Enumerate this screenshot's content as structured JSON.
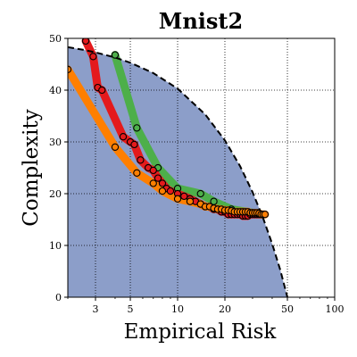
{
  "chart_data": {
    "type": "scatter",
    "title": "Mnist2",
    "xlabel": "Empirical Risk",
    "ylabel": "Complexity",
    "x_scale": "log",
    "xlim": [
      2,
      100
    ],
    "ylim": [
      0,
      50
    ],
    "x_ticks": [
      3,
      5,
      10,
      20,
      50,
      100
    ],
    "x_tick_labels": [
      "3",
      "5",
      "10",
      "20",
      "50",
      "100"
    ],
    "y_ticks": [
      0,
      10,
      20,
      30,
      40,
      50
    ],
    "y_tick_labels": [
      "0",
      "10",
      "20",
      "30",
      "40",
      "50"
    ],
    "grid": true,
    "legend": "none",
    "colors": {
      "region_fill": "#8c9ec9",
      "green": "#4daf4a",
      "red": "#e41a1c",
      "orange": "#ff7f00",
      "boundary": "#000000"
    },
    "boundary": {
      "x": [
        2,
        2.5,
        3,
        4,
        5,
        7,
        10,
        15,
        20,
        25,
        30,
        35,
        40,
        45,
        50
      ],
      "y": [
        48.3,
        47.8,
        47.3,
        46.3,
        45.3,
        43.3,
        40.3,
        35.3,
        30.3,
        25.3,
        20.3,
        15.3,
        10.3,
        5.3,
        0
      ]
    },
    "series": [
      {
        "color": "green",
        "x": [
          4,
          5.5,
          7.5,
          10,
          14,
          17,
          22,
          30
        ],
        "y": [
          46.8,
          32.7,
          25,
          21,
          20,
          18.5,
          17,
          16.3
        ]
      },
      {
        "color": "red",
        "x": [
          2.6,
          2.9,
          3.1,
          3.3,
          4.5,
          5,
          5.3,
          5.8,
          6.5,
          7,
          7.5,
          8,
          8.5,
          9,
          10,
          11,
          12,
          13,
          14,
          15,
          16,
          17,
          18,
          19,
          20,
          21,
          22,
          23,
          24,
          25,
          26,
          27,
          28,
          29,
          30,
          31,
          32,
          33,
          34
        ],
        "y": [
          49.5,
          46.5,
          40.5,
          40,
          31,
          30,
          29.5,
          26.5,
          25,
          24.5,
          23,
          22,
          21,
          20.5,
          20,
          19.5,
          19,
          18.5,
          18,
          17.5,
          17.5,
          17,
          17,
          16.5,
          16.5,
          16,
          16,
          16,
          16,
          16,
          15.7,
          15.7,
          15.7,
          16,
          16,
          16,
          16,
          16,
          16
        ]
      },
      {
        "color": "orange",
        "x": [
          2,
          4,
          5.5,
          7,
          8,
          10,
          12,
          14,
          15,
          16,
          17,
          18,
          19,
          20,
          21,
          22,
          23,
          24,
          25,
          26,
          27,
          28,
          29,
          30,
          31,
          32,
          33,
          34,
          35,
          36
        ],
        "y": [
          44,
          29,
          24,
          22,
          20.5,
          19,
          18.5,
          18,
          17.5,
          17.5,
          17.2,
          17,
          17,
          16.8,
          16.8,
          16.7,
          16.5,
          16.5,
          16.5,
          16.5,
          16.5,
          16.5,
          16.3,
          16.3,
          16.3,
          16.3,
          16.2,
          16,
          16,
          16
        ]
      }
    ]
  }
}
